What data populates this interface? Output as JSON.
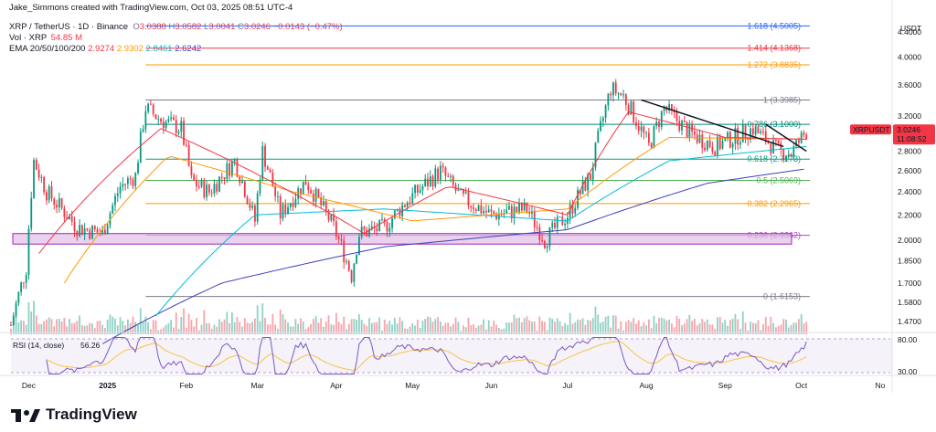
{
  "header": {
    "credit": "Jake_Simmons created with TradingView.com, Oct 03, 2025 08:51 UTC-4",
    "symbol_line": "XRP / TetherUS · 1D · Binance",
    "ohlc": {
      "o_label": "O",
      "o": "3.0388",
      "h_label": "H",
      "h": "3.0582",
      "l_label": "L",
      "l": "3.0041",
      "c_label": "C",
      "c": "3.0246",
      "change": "−0.0143 (−0.47%)"
    },
    "vol_label": "Vol · XRP",
    "vol_value": "54.85 M",
    "ema_label": "EMA 20/50/100/200",
    "ema_values": [
      "2.9274",
      "2.9302",
      "2.8461",
      "2.6242"
    ]
  },
  "colors": {
    "up": "#089981",
    "down": "#f23645",
    "ema20": "#f23645",
    "ema50": "#ff9800",
    "ema100": "#00bcd4",
    "ema200": "#3f3fbf",
    "rsi": "#7e57c2",
    "rsi_ma": "#f5c542",
    "zone_fill": "#e1bee7",
    "zone_border": "#9c27b0",
    "trendline": "#131722",
    "price_tag": "#f23645"
  },
  "price_axis": {
    "unit": "USDT",
    "ticks": [
      "4.4000",
      "4.0000",
      "3.6000",
      "3.2000",
      "2.8000",
      "2.6000",
      "2.4000",
      "2.2000",
      "2.0000",
      "1.8500",
      "1.7000",
      "1.5800",
      "1.4700"
    ],
    "tag_symbol": "XRPUSDT",
    "tag_price": "3.0246",
    "tag_countdown": "11:08:52"
  },
  "rsi": {
    "label": "RSI (14, close)",
    "value": "56.26",
    "ticks": [
      "80.00",
      "30.00"
    ]
  },
  "time_axis": [
    "Dec",
    "2025",
    "Feb",
    "Mar",
    "Apr",
    "May",
    "Jun",
    "Jul",
    "Aug",
    "Sep",
    "Oct",
    "No"
  ],
  "logo_text": "TradingView",
  "chart_data": {
    "type": "candlestick",
    "title": "XRP / TetherUS · 1D · Binance",
    "y_scale": "log",
    "ylim": [
      1.4,
      4.6
    ],
    "x_range": [
      "2024-11-24",
      "2025-11-05"
    ],
    "fibonacci": [
      {
        "level": "1.618",
        "price": 4.5005,
        "color": "#2962ff"
      },
      {
        "level": "1.414",
        "price": 4.1368,
        "color": "#f23645"
      },
      {
        "level": "1.272",
        "price": 3.8835,
        "color": "#ff9800"
      },
      {
        "level": "1",
        "price": 3.3985,
        "color": "#787b86"
      },
      {
        "level": "0.786",
        "price": 3.1,
        "color": "#00897b"
      },
      {
        "level": "0.618",
        "price": 2.7173,
        "color": "#089981"
      },
      {
        "level": "0.5",
        "price": 2.5069,
        "color": "#4caf50"
      },
      {
        "level": "0.382",
        "price": 2.2965,
        "color": "#ff9800"
      },
      {
        "level": "0.236",
        "price": 2.0362,
        "color": "#ab47bc"
      },
      {
        "level": "0",
        "price": 1.6153,
        "color": "#787b86"
      }
    ],
    "support_zone": {
      "low": 1.97,
      "high": 2.05
    },
    "anchors": [
      {
        "date": "2024-11-24",
        "price": 1.45
      },
      {
        "date": "2024-11-30",
        "price": 1.8
      },
      {
        "date": "2024-12-03",
        "price": 2.7
      },
      {
        "date": "2024-12-08",
        "price": 2.4
      },
      {
        "date": "2024-12-20",
        "price": 2.1
      },
      {
        "date": "2024-12-30",
        "price": 2.05
      },
      {
        "date": "2025-01-06",
        "price": 2.45
      },
      {
        "date": "2025-01-12",
        "price": 2.55
      },
      {
        "date": "2025-01-16",
        "price": 3.3
      },
      {
        "date": "2025-01-22",
        "price": 3.15
      },
      {
        "date": "2025-01-30",
        "price": 3.05
      },
      {
        "date": "2025-02-03",
        "price": 2.5
      },
      {
        "date": "2025-02-10",
        "price": 2.4
      },
      {
        "date": "2025-02-20",
        "price": 2.7
      },
      {
        "date": "2025-02-28",
        "price": 2.15
      },
      {
        "date": "2025-03-03",
        "price": 2.8
      },
      {
        "date": "2025-03-10",
        "price": 2.2
      },
      {
        "date": "2025-03-20",
        "price": 2.5
      },
      {
        "date": "2025-03-31",
        "price": 2.1
      },
      {
        "date": "2025-04-07",
        "price": 1.75
      },
      {
        "date": "2025-04-10",
        "price": 2.05
      },
      {
        "date": "2025-04-20",
        "price": 2.1
      },
      {
        "date": "2025-04-28",
        "price": 2.3
      },
      {
        "date": "2025-05-12",
        "price": 2.6
      },
      {
        "date": "2025-05-20",
        "price": 2.35
      },
      {
        "date": "2025-06-01",
        "price": 2.2
      },
      {
        "date": "2025-06-15",
        "price": 2.25
      },
      {
        "date": "2025-06-22",
        "price": 2.0
      },
      {
        "date": "2025-07-01",
        "price": 2.2
      },
      {
        "date": "2025-07-10",
        "price": 2.55
      },
      {
        "date": "2025-07-18",
        "price": 3.55
      },
      {
        "date": "2025-07-23",
        "price": 3.45
      },
      {
        "date": "2025-08-02",
        "price": 2.85
      },
      {
        "date": "2025-08-08",
        "price": 3.3
      },
      {
        "date": "2025-08-18",
        "price": 3.0
      },
      {
        "date": "2025-08-28",
        "price": 2.85
      },
      {
        "date": "2025-09-12",
        "price": 3.05
      },
      {
        "date": "2025-09-22",
        "price": 2.8
      },
      {
        "date": "2025-09-27",
        "price": 2.78
      },
      {
        "date": "2025-10-03",
        "price": 3.02
      }
    ],
    "ema_anchors": {
      "ema200": [
        {
          "date": "2024-12-30",
          "price": 1.35
        },
        {
          "date": "2025-02-15",
          "price": 1.7
        },
        {
          "date": "2025-04-20",
          "price": 1.95
        },
        {
          "date": "2025-07-01",
          "price": 2.08
        },
        {
          "date": "2025-08-25",
          "price": 2.48
        },
        {
          "date": "2025-10-03",
          "price": 2.62
        }
      ],
      "ema100": [
        {
          "date": "2025-01-20",
          "price": 1.5
        },
        {
          "date": "2025-02-28",
          "price": 2.2
        },
        {
          "date": "2025-04-20",
          "price": 2.25
        },
        {
          "date": "2025-07-01",
          "price": 2.15
        },
        {
          "date": "2025-08-10",
          "price": 2.7
        },
        {
          "date": "2025-10-03",
          "price": 2.85
        }
      ],
      "ema50": [
        {
          "date": "2024-12-15",
          "price": 1.7
        },
        {
          "date": "2025-01-25",
          "price": 2.75
        },
        {
          "date": "2025-03-15",
          "price": 2.4
        },
        {
          "date": "2025-05-01",
          "price": 2.15
        },
        {
          "date": "2025-07-01",
          "price": 2.25
        },
        {
          "date": "2025-08-10",
          "price": 2.95
        },
        {
          "date": "2025-10-03",
          "price": 2.93
        }
      ],
      "ema20": [
        {
          "date": "2024-12-05",
          "price": 1.9
        },
        {
          "date": "2025-01-22",
          "price": 3.05
        },
        {
          "date": "2025-03-10",
          "price": 2.45
        },
        {
          "date": "2025-04-12",
          "price": 2.05
        },
        {
          "date": "2025-05-15",
          "price": 2.45
        },
        {
          "date": "2025-07-01",
          "price": 2.2
        },
        {
          "date": "2025-07-25",
          "price": 3.25
        },
        {
          "date": "2025-09-01",
          "price": 2.95
        },
        {
          "date": "2025-10-03",
          "price": 2.93
        }
      ]
    },
    "trendlines": [
      {
        "from": {
          "date": "2025-07-30",
          "price": 3.4
        },
        "to": {
          "date": "2025-09-24",
          "price": 2.85
        }
      },
      {
        "from": {
          "date": "2025-09-17",
          "price": 3.1
        },
        "to": {
          "date": "2025-10-03",
          "price": 2.8
        }
      }
    ]
  }
}
